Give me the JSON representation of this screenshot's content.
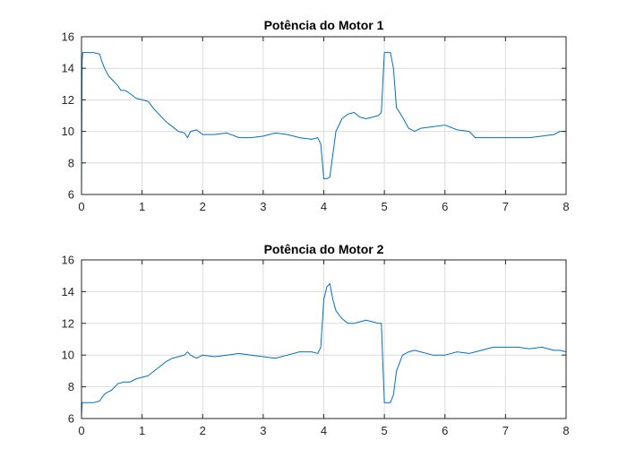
{
  "chart_data": [
    {
      "type": "line",
      "title": "Potência do Motor 1",
      "xlabel": "",
      "ylabel": "",
      "xlim": [
        0,
        8
      ],
      "ylim": [
        6,
        16
      ],
      "xticks": [
        0,
        1,
        2,
        3,
        4,
        5,
        6,
        7,
        8
      ],
      "yticks": [
        6,
        8,
        10,
        12,
        14,
        16
      ],
      "grid": true,
      "color": "#0072BD",
      "series": [
        {
          "x": [
            0,
            0.01,
            0.02,
            0.05,
            0.1,
            0.2,
            0.3,
            0.33,
            0.38,
            0.45,
            0.5,
            0.6,
            0.65,
            0.72,
            0.8,
            0.9,
            1.0,
            1.1,
            1.2,
            1.3,
            1.4,
            1.5,
            1.6,
            1.7,
            1.75,
            1.8,
            1.9,
            2.0,
            2.2,
            2.4,
            2.6,
            2.8,
            3.0,
            3.2,
            3.4,
            3.6,
            3.8,
            3.9,
            3.95,
            4.0,
            4.05,
            4.1,
            4.2,
            4.3,
            4.4,
            4.5,
            4.6,
            4.7,
            4.8,
            4.9,
            4.95,
            5.0,
            5.1,
            5.15,
            5.2,
            5.3,
            5.4,
            5.5,
            5.6,
            5.8,
            6.0,
            6.2,
            6.4,
            6.5,
            6.6,
            6.8,
            7.0,
            7.2,
            7.4,
            7.6,
            7.8,
            7.9,
            8.0
          ],
          "y": [
            6.1,
            14.5,
            15.0,
            15.0,
            15.0,
            15.0,
            14.9,
            14.5,
            14.0,
            13.5,
            13.3,
            12.9,
            12.6,
            12.6,
            12.4,
            12.1,
            12.0,
            11.9,
            11.4,
            11.0,
            10.6,
            10.3,
            10.0,
            9.9,
            9.6,
            10.0,
            10.1,
            9.8,
            9.8,
            9.9,
            9.6,
            9.6,
            9.7,
            9.9,
            9.8,
            9.6,
            9.5,
            9.6,
            9.2,
            7.0,
            7.0,
            7.1,
            10.0,
            10.8,
            11.1,
            11.2,
            10.9,
            10.8,
            10.9,
            11.0,
            11.2,
            15.0,
            15.0,
            14.0,
            11.5,
            10.9,
            10.2,
            10.0,
            10.2,
            10.3,
            10.4,
            10.1,
            10.0,
            9.6,
            9.6,
            9.6,
            9.6,
            9.6,
            9.6,
            9.7,
            9.8,
            10.0,
            10.0
          ]
        }
      ]
    },
    {
      "type": "line",
      "title": "Potência do Motor 2",
      "xlabel": "",
      "ylabel": "",
      "xlim": [
        0,
        8
      ],
      "ylim": [
        6,
        16
      ],
      "xticks": [
        0,
        1,
        2,
        3,
        4,
        5,
        6,
        7,
        8
      ],
      "yticks": [
        6,
        8,
        10,
        12,
        14,
        16
      ],
      "grid": true,
      "color": "#0072BD",
      "series": [
        {
          "x": [
            0,
            0.01,
            0.05,
            0.2,
            0.3,
            0.35,
            0.4,
            0.5,
            0.6,
            0.7,
            0.8,
            0.9,
            1.0,
            1.1,
            1.2,
            1.3,
            1.4,
            1.5,
            1.6,
            1.7,
            1.75,
            1.8,
            1.9,
            2.0,
            2.2,
            2.4,
            2.6,
            2.8,
            3.0,
            3.2,
            3.4,
            3.6,
            3.8,
            3.9,
            3.95,
            4.0,
            4.05,
            4.1,
            4.15,
            4.2,
            4.3,
            4.4,
            4.5,
            4.6,
            4.7,
            4.8,
            4.9,
            4.95,
            5.0,
            5.1,
            5.15,
            5.2,
            5.3,
            5.4,
            5.5,
            5.6,
            5.8,
            6.0,
            6.2,
            6.4,
            6.5,
            6.6,
            6.8,
            7.0,
            7.2,
            7.4,
            7.6,
            7.8,
            7.9,
            8.0
          ],
          "y": [
            6.1,
            7.0,
            7.0,
            7.0,
            7.1,
            7.4,
            7.6,
            7.8,
            8.2,
            8.3,
            8.3,
            8.5,
            8.6,
            8.7,
            9.0,
            9.3,
            9.6,
            9.8,
            9.9,
            10.0,
            10.2,
            10.0,
            9.8,
            10.0,
            9.9,
            10.0,
            10.1,
            10.0,
            9.9,
            9.8,
            10.0,
            10.2,
            10.2,
            10.1,
            10.5,
            13.5,
            14.3,
            14.5,
            13.5,
            12.8,
            12.3,
            12.0,
            12.0,
            12.1,
            12.2,
            12.1,
            12.0,
            12.0,
            7.0,
            7.0,
            7.5,
            9.0,
            10.0,
            10.2,
            10.3,
            10.2,
            10.0,
            10.0,
            10.2,
            10.1,
            10.2,
            10.3,
            10.5,
            10.5,
            10.5,
            10.4,
            10.5,
            10.3,
            10.3,
            10.2
          ]
        }
      ]
    }
  ]
}
